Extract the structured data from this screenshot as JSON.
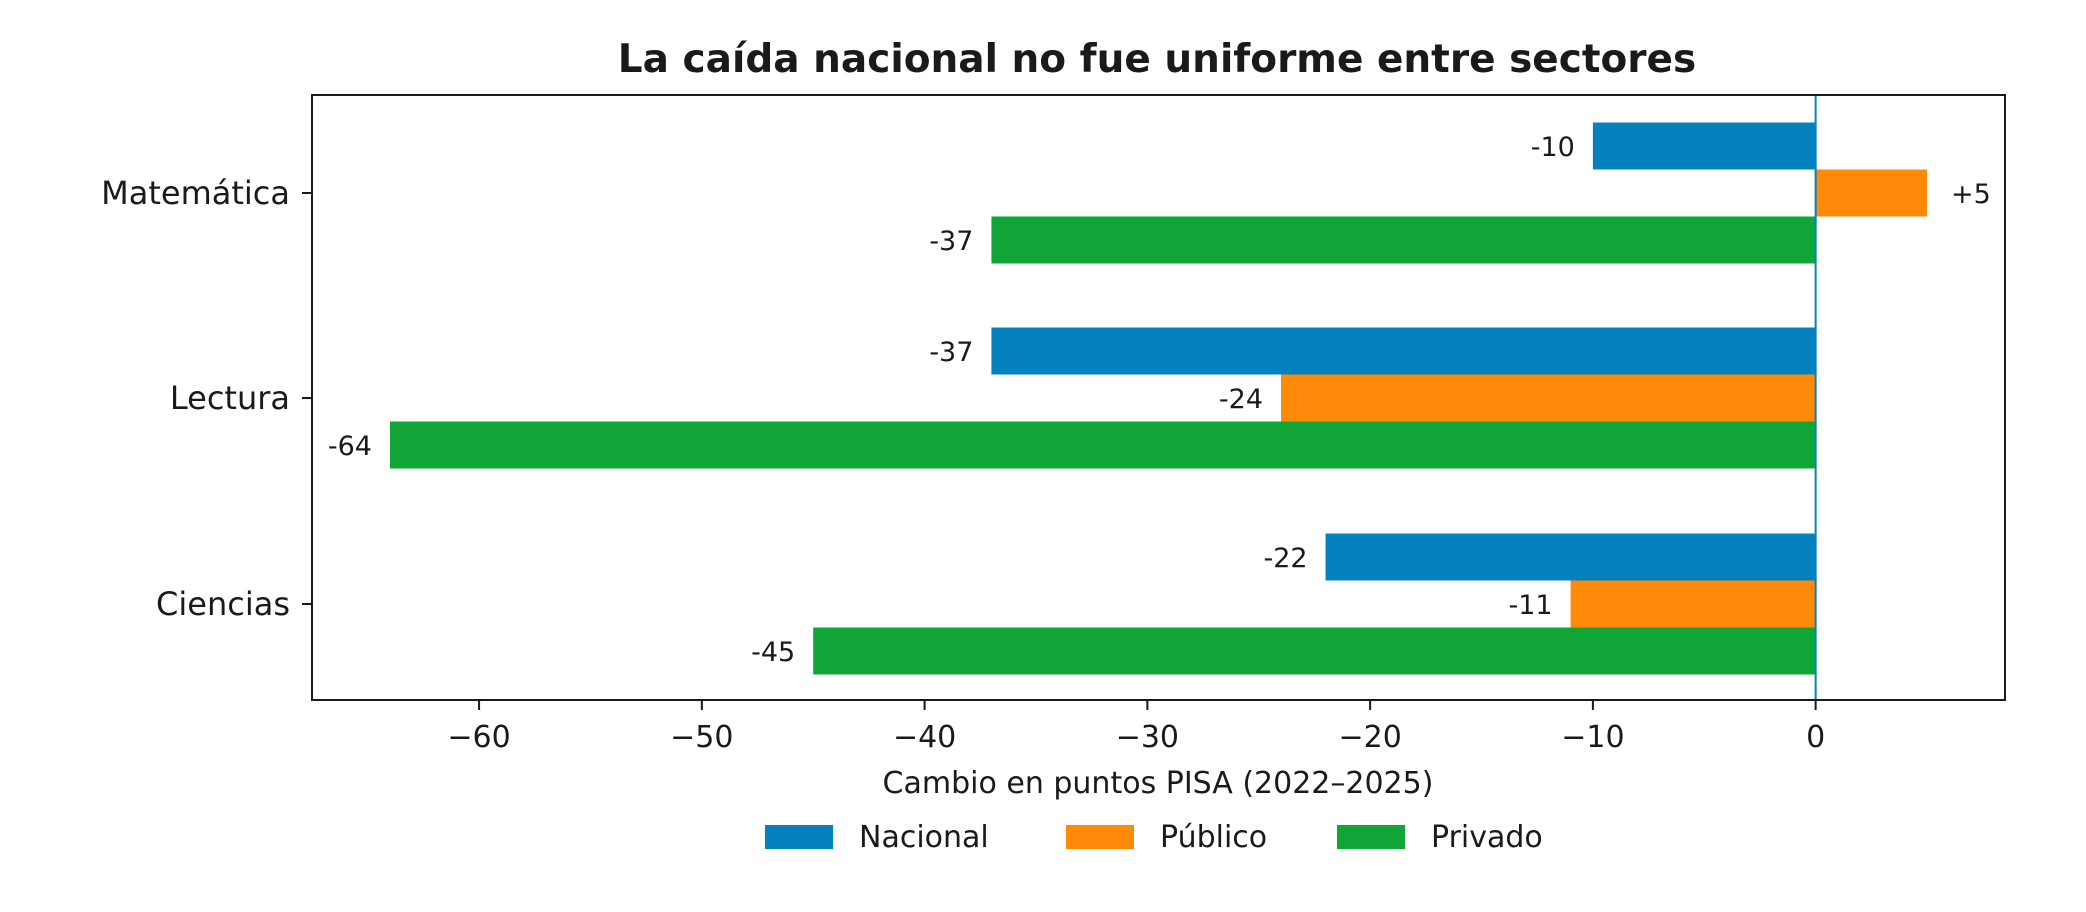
{
  "chart_data": {
    "type": "bar",
    "orientation": "horizontal",
    "title": "La caída nacional no fue uniforme entre sectores",
    "xlabel": "Cambio en puntos PISA (2022–2025)",
    "ylabel": "",
    "categories": [
      "Matemática",
      "Lectura",
      "Ciencias"
    ],
    "series": [
      {
        "name": "Nacional",
        "color": "#0481bf",
        "values": [
          -10,
          -37,
          -22
        ],
        "labels": [
          "-10",
          "-37",
          "-22"
        ]
      },
      {
        "name": "Público",
        "color": "#ff8a0a",
        "values": [
          5,
          -24,
          -11
        ],
        "labels": [
          "+5",
          "-24",
          "-11"
        ]
      },
      {
        "name": "Privado",
        "color": "#10a637",
        "values": [
          -37,
          -64,
          -45
        ],
        "labels": [
          "-37",
          "-64",
          "-45"
        ]
      }
    ],
    "xlim": [
      -67.5,
      8.5
    ],
    "xticks": [
      -60,
      -50,
      -40,
      -30,
      -20,
      -10,
      0
    ],
    "xtick_labels": [
      "−60",
      "−50",
      "−40",
      "−30",
      "−20",
      "−10",
      "0"
    ],
    "zero_line": true,
    "zero_line_color": "#0481bf",
    "grid": false,
    "legend_position": "bottom-center"
  }
}
